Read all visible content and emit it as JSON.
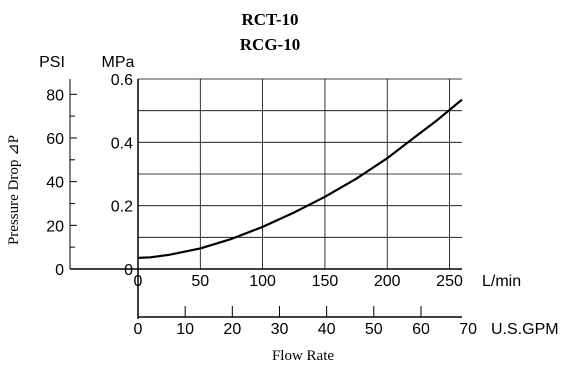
{
  "chart_data": {
    "type": "line",
    "title": "RCT-10",
    "subtitle": "RCG-10",
    "ylabel": "Pressure Drop ⊿P",
    "xlabel": "Flow Rate",
    "y_axis_psi": {
      "unit": "PSI",
      "range": [
        0,
        87
      ],
      "ticks": [
        0,
        20,
        40,
        60,
        80
      ],
      "tick_labels": [
        "0",
        "20",
        "40",
        "60",
        "80"
      ]
    },
    "y_axis_mpa": {
      "unit": "MPa",
      "range": [
        0,
        0.6
      ],
      "ticks": [
        0,
        0.2,
        0.4,
        0.6
      ],
      "tick_labels": [
        "0",
        "0.2",
        "0.4",
        "0.6"
      ]
    },
    "x_axis_lmin": {
      "unit": "L/min",
      "range": [
        0,
        260
      ],
      "ticks": [
        0,
        50,
        100,
        150,
        200,
        250
      ],
      "tick_labels": [
        "0",
        "50",
        "100",
        "150",
        "200",
        "250"
      ]
    },
    "x_axis_gpm": {
      "unit": "U.S.GPM",
      "range": [
        0,
        68.7
      ],
      "ticks": [
        0,
        10,
        20,
        30,
        40,
        50,
        60,
        70
      ],
      "tick_labels": [
        "0",
        "10",
        "20",
        "30",
        "40",
        "50",
        "60",
        "70"
      ]
    },
    "grid": true,
    "series": [
      {
        "x_unit": "L/min",
        "y_unit": "MPa",
        "x": [
          0,
          10,
          25,
          50,
          75,
          100,
          125,
          150,
          175,
          200,
          225,
          240,
          260
        ],
        "y": [
          0.035,
          0.037,
          0.045,
          0.065,
          0.095,
          0.133,
          0.178,
          0.228,
          0.285,
          0.35,
          0.425,
          0.47,
          0.535
        ]
      }
    ]
  }
}
